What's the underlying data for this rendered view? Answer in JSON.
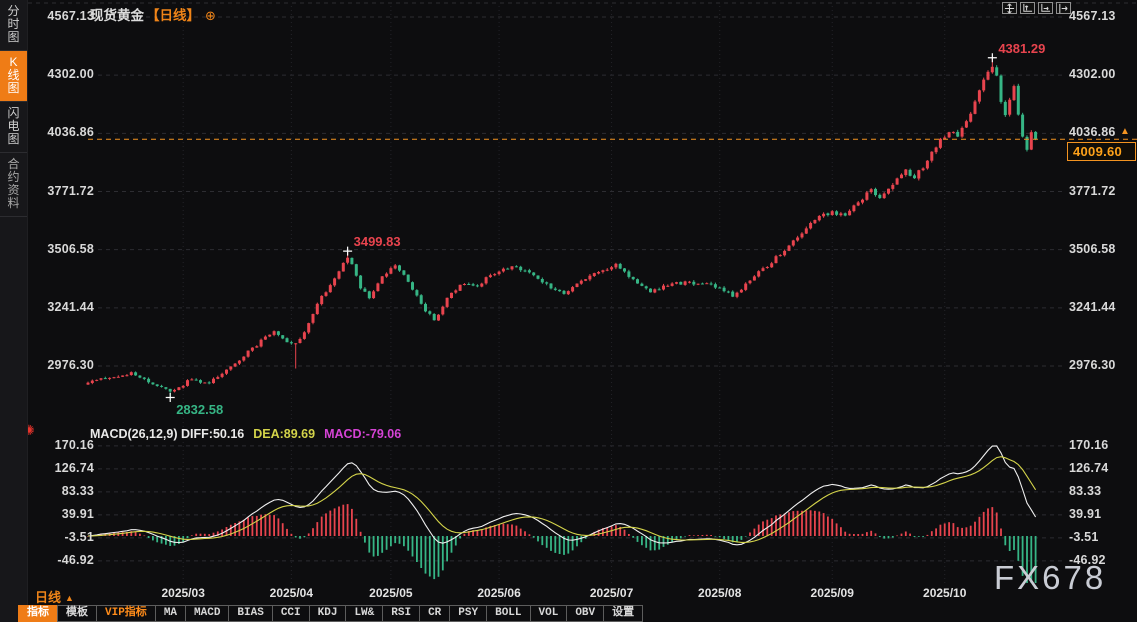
{
  "header": {
    "symbol": "现货黄金",
    "period_tag": "【日线】",
    "add_icon": "⊕"
  },
  "sidebar": {
    "items": [
      {
        "label": "分时图",
        "active": false
      },
      {
        "label": "K线图",
        "active": true
      },
      {
        "label": "闪电图",
        "active": false
      },
      {
        "label": "合约资料",
        "active": false
      }
    ]
  },
  "top_right_icons": [
    {
      "name": "move-chart-icon"
    },
    {
      "name": "y-axis-scale-icon"
    },
    {
      "name": "x-axis-scale-icon"
    },
    {
      "name": "shift-right-icon"
    }
  ],
  "main_chart": {
    "y_axis_labels": [
      "4567.13",
      "4302.00",
      "4036.86",
      "3771.72",
      "3506.58",
      "3241.44",
      "2976.30"
    ],
    "current_price": "4009.60",
    "current_price_marker": "▲"
  },
  "macd": {
    "title": "MACD(26,12,9)",
    "diff_label": "DIFF:50.16",
    "dea_label": "DEA:89.69",
    "macd_label": "MACD:-79.06",
    "y_axis_labels": [
      "170.16",
      "126.74",
      "83.33",
      "39.91",
      "-3.51",
      "-46.92"
    ]
  },
  "x_axis": {
    "labels": [
      "2025/03",
      "2025/04",
      "2025/05",
      "2025/06",
      "2025/07",
      "2025/08",
      "2025/09",
      "2025/10"
    ]
  },
  "footer": {
    "period_label": "日线",
    "period_arrow": "▲"
  },
  "settings_icon": "✺",
  "watermark": "FX678",
  "toolbar": {
    "items": [
      {
        "label": "指标",
        "variant": "active"
      },
      {
        "label": "模板",
        "variant": "plain"
      },
      {
        "label": "VIP指标",
        "variant": "vip"
      },
      {
        "label": "MA",
        "variant": "plain"
      },
      {
        "label": "MACD",
        "variant": "plain"
      },
      {
        "label": "BIAS",
        "variant": "plain"
      },
      {
        "label": "CCI",
        "variant": "plain"
      },
      {
        "label": "KDJ",
        "variant": "plain"
      },
      {
        "label": "LW&",
        "variant": "plain"
      },
      {
        "label": "RSI",
        "variant": "plain"
      },
      {
        "label": "CR",
        "variant": "plain"
      },
      {
        "label": "PSY",
        "variant": "plain"
      },
      {
        "label": "BOLL",
        "variant": "plain"
      },
      {
        "label": "VOL",
        "variant": "plain"
      },
      {
        "label": "OBV",
        "variant": "plain"
      },
      {
        "label": "设置",
        "variant": "plain"
      }
    ]
  },
  "colors": {
    "up": "#e8444e",
    "down": "#36b585",
    "accent": "#f39321",
    "accent_dark": "#ef7c16",
    "diff_line": "#f0f0f0",
    "dea_line": "#d4d44a",
    "macd_text": "#d543d5",
    "axis_text": "#d9d9d9"
  },
  "chart_data": {
    "type": "candlestick",
    "title": "现货黄金 日线",
    "price_axis_ticks": [
      4567.13,
      4302.0,
      4036.86,
      3771.72,
      3506.58,
      3241.44,
      2976.3
    ],
    "macd_axis_ticks": [
      170.16,
      126.74,
      83.33,
      39.91,
      -3.51,
      -46.92
    ],
    "x_tick_labels": [
      "2025/03",
      "2025/04",
      "2025/05",
      "2025/06",
      "2025/07",
      "2025/08",
      "2025/09",
      "2025/10"
    ],
    "candle_count": 220,
    "month_tick_indices": [
      22,
      47,
      70,
      95,
      121,
      146,
      172,
      198
    ],
    "close_anchors": [
      [
        0,
        2900
      ],
      [
        5,
        2922
      ],
      [
        10,
        2948
      ],
      [
        14,
        2902
      ],
      [
        19,
        2860
      ],
      [
        24,
        2915
      ],
      [
        28,
        2898
      ],
      [
        32,
        2960
      ],
      [
        38,
        3060
      ],
      [
        43,
        3135
      ],
      [
        46,
        3085
      ],
      [
        48,
        3080
      ],
      [
        50,
        3130
      ],
      [
        53,
        3260
      ],
      [
        56,
        3345
      ],
      [
        60,
        3470
      ],
      [
        61,
        3440
      ],
      [
        63,
        3330
      ],
      [
        65,
        3285
      ],
      [
        68,
        3385
      ],
      [
        71,
        3435
      ],
      [
        74,
        3360
      ],
      [
        78,
        3225
      ],
      [
        80,
        3185
      ],
      [
        84,
        3310
      ],
      [
        87,
        3350
      ],
      [
        90,
        3340
      ],
      [
        93,
        3390
      ],
      [
        96,
        3420
      ],
      [
        99,
        3430
      ],
      [
        103,
        3390
      ],
      [
        107,
        3330
      ],
      [
        110,
        3305
      ],
      [
        114,
        3365
      ],
      [
        118,
        3405
      ],
      [
        122,
        3442
      ],
      [
        126,
        3372
      ],
      [
        130,
        3312
      ],
      [
        134,
        3342
      ],
      [
        138,
        3362
      ],
      [
        142,
        3352
      ],
      [
        146,
        3332
      ],
      [
        149,
        3292
      ],
      [
        152,
        3352
      ],
      [
        156,
        3422
      ],
      [
        160,
        3482
      ],
      [
        164,
        3562
      ],
      [
        168,
        3642
      ],
      [
        172,
        3682
      ],
      [
        175,
        3662
      ],
      [
        178,
        3722
      ],
      [
        181,
        3782
      ],
      [
        183,
        3742
      ],
      [
        186,
        3802
      ],
      [
        189,
        3872
      ],
      [
        191,
        3832
      ],
      [
        194,
        3912
      ],
      [
        197,
        4012
      ],
      [
        199,
        4042
      ],
      [
        201,
        4022
      ],
      [
        203,
        4092
      ],
      [
        205,
        4182
      ],
      [
        207,
        4282
      ],
      [
        209,
        4340
      ],
      [
        210,
        4300
      ],
      [
        211,
        4180
      ],
      [
        212,
        4120
      ],
      [
        213,
        4190
      ],
      [
        214,
        4252
      ],
      [
        215,
        4122
      ],
      [
        216,
        4022
      ],
      [
        217,
        3962
      ],
      [
        218,
        4042
      ],
      [
        219,
        4009.6
      ]
    ],
    "extreme_markers": [
      {
        "index": 19,
        "price": 2832.58,
        "kind": "low",
        "label": "2832.58"
      },
      {
        "index": 48,
        "price": 2965,
        "kind": "low",
        "label": ""
      },
      {
        "index": 60,
        "price": 3499.83,
        "kind": "high",
        "label": "3499.83"
      },
      {
        "index": 209,
        "price": 4381.29,
        "kind": "high",
        "label": "4381.29"
      }
    ],
    "last_close": 4009.6,
    "indicator": {
      "name": "MACD",
      "params": [
        26,
        12,
        9
      ],
      "diff": 50.16,
      "dea": 89.69,
      "macd": -79.06
    }
  }
}
